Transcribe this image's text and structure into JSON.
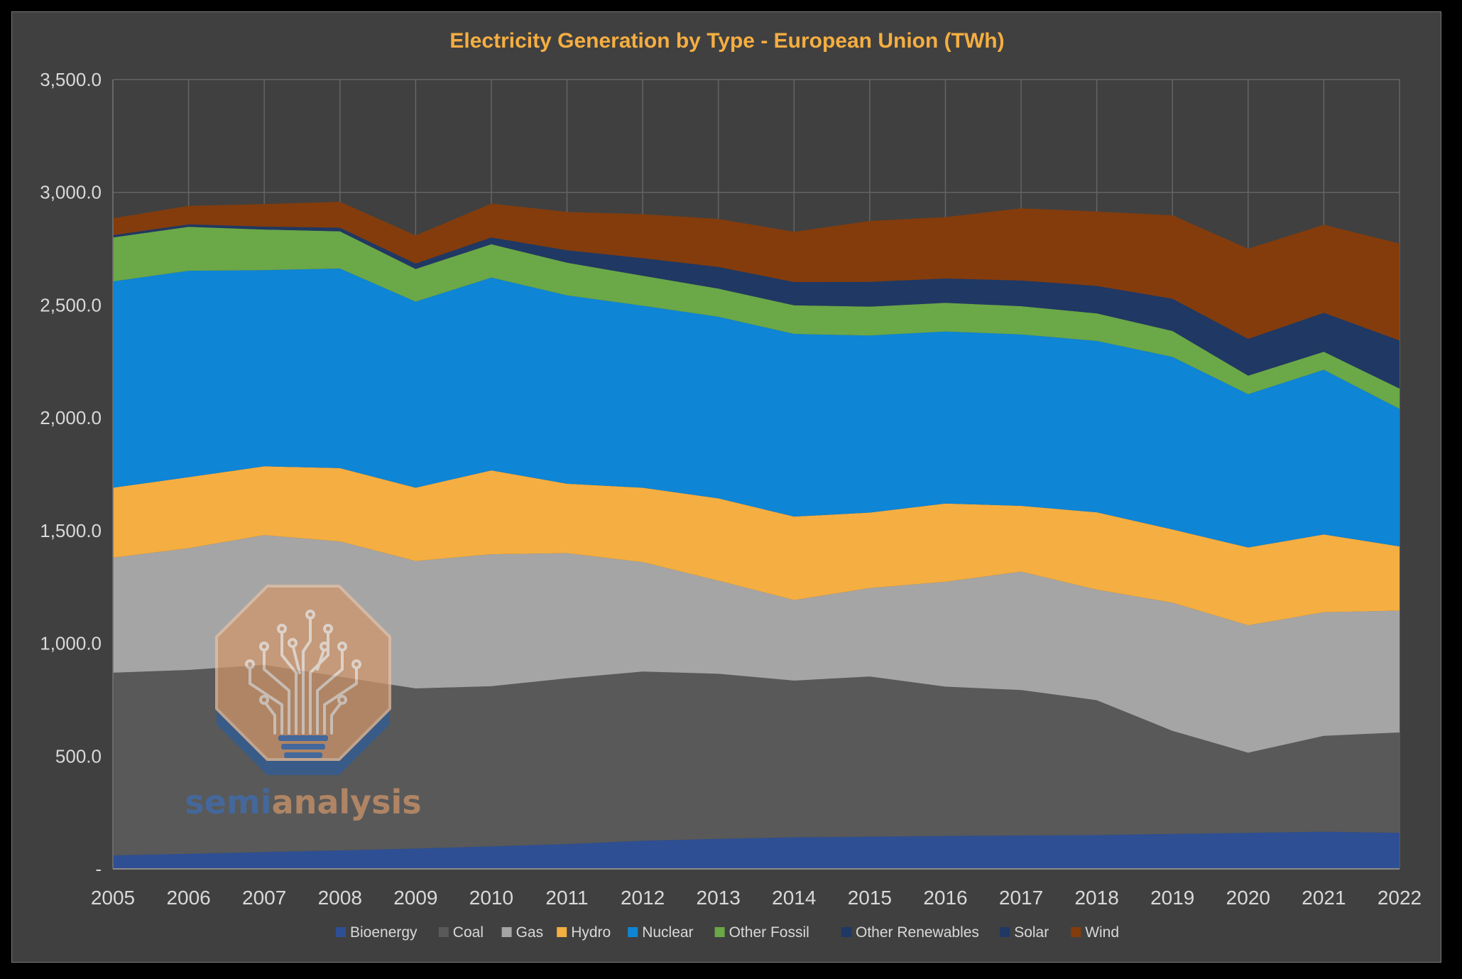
{
  "chart_data": {
    "type": "area",
    "title": "Electricity Generation by Type - European Union (TWh)",
    "xlabel": "",
    "ylabel": "",
    "stacked": true,
    "x": [
      "2005",
      "2006",
      "2007",
      "2008",
      "2009",
      "2010",
      "2011",
      "2012",
      "2013",
      "2014",
      "2015",
      "2016",
      "2017",
      "2018",
      "2019",
      "2020",
      "2021",
      "2022"
    ],
    "ylim": [
      0,
      3500
    ],
    "y_ticks": [
      "-",
      "500.0",
      "1,000.0",
      "1,500.0",
      "2,000.0",
      "2,500.0",
      "3,000.0",
      "3,500.0"
    ],
    "grid": "vertical and horizontal",
    "legend": "bottom",
    "series": [
      {
        "name": "Bioenergy",
        "color": "#2e4f93",
        "values": [
          60,
          67,
          75,
          82,
          90,
          100,
          110,
          125,
          133,
          140,
          143,
          146,
          148,
          150,
          155,
          160,
          165,
          160
        ]
      },
      {
        "name": "Coal",
        "color": "#595959",
        "values": [
          810,
          815,
          830,
          770,
          710,
          710,
          735,
          750,
          732,
          695,
          710,
          662,
          645,
          598,
          457,
          355,
          425,
          445
        ]
      },
      {
        "name": "Gas",
        "color": "#a5a5a5",
        "values": [
          510,
          540,
          575,
          600,
          565,
          585,
          555,
          485,
          413,
          357,
          392,
          465,
          525,
          490,
          568,
          565,
          548,
          540
        ]
      },
      {
        "name": "Hydro",
        "color": "#f5ae41",
        "values": [
          310,
          315,
          305,
          325,
          325,
          372,
          308,
          330,
          365,
          370,
          335,
          347,
          292,
          343,
          325,
          345,
          345,
          285
        ]
      },
      {
        "name": "Nuclear",
        "color": "#0e85d5",
        "values": [
          915,
          915,
          870,
          885,
          825,
          855,
          835,
          807,
          805,
          810,
          785,
          763,
          760,
          760,
          765,
          680,
          730,
          610
        ]
      },
      {
        "name": "Other Fossil",
        "color": "#6ba847",
        "values": [
          195,
          195,
          180,
          165,
          145,
          148,
          145,
          133,
          125,
          127,
          128,
          127,
          125,
          122,
          115,
          82,
          80,
          90
        ]
      },
      {
        "name": "Other Renewables",
        "color": "#203864",
        "values": [
          8,
          8,
          8,
          8,
          9,
          10,
          10,
          10,
          10,
          10,
          10,
          12,
          12,
          12,
          13,
          13,
          13,
          13
        ]
      },
      {
        "name": "Solar",
        "color": "#1f3864",
        "values": [
          2,
          3,
          5,
          8,
          15,
          20,
          45,
          68,
          86,
          93,
          100,
          96,
          102,
          110,
          130,
          150,
          160,
          200
        ]
      },
      {
        "name": "Wind",
        "color": "#843c0c",
        "values": [
          75,
          82,
          100,
          115,
          125,
          150,
          170,
          195,
          213,
          223,
          270,
          272,
          320,
          330,
          370,
          400,
          390,
          430
        ]
      }
    ]
  },
  "colors": {
    "title": "#f5ae41",
    "background": "#404040",
    "gridline": "#646464"
  },
  "watermark": {
    "brand_left": "semi",
    "brand_right": "analysis",
    "icon": "circuit-tree-lightbulb-icon"
  }
}
